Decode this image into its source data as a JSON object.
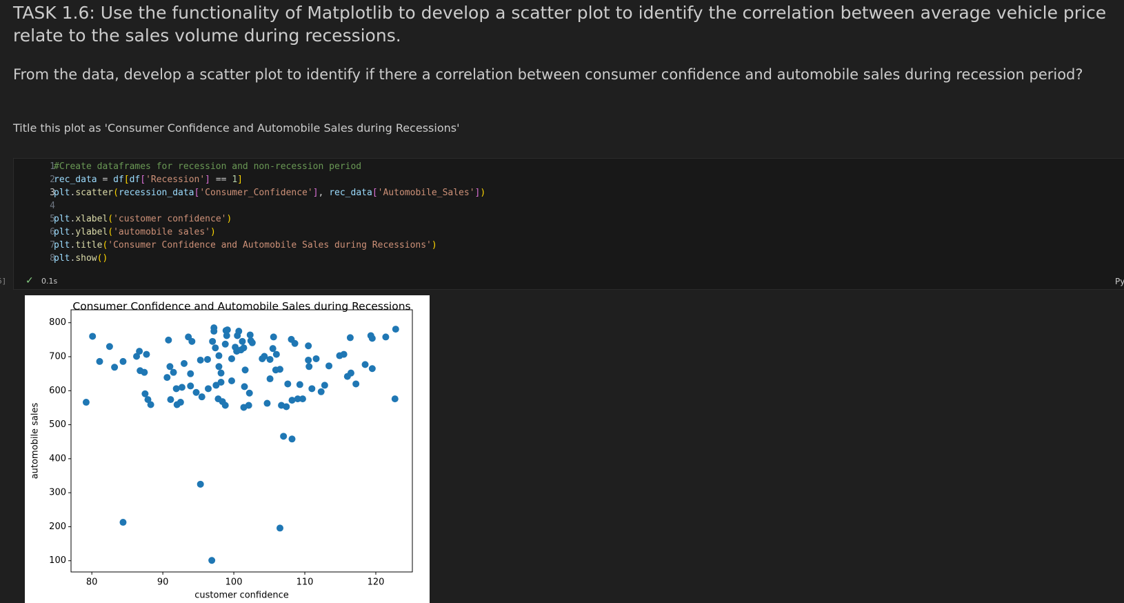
{
  "markdown": {
    "heading": "TASK 1.6: Use the functionality of Matplotlib to develop a scatter plot to identify the correlation between average vehicle price relate to the sales volume during recessions.",
    "question": "From the data, develop a scatter plot to identify if there a correlation between consumer confidence and automobile sales during recession period?",
    "instruction": "Title this plot as 'Consumer Confidence and Automobile Sales during Recessions'"
  },
  "cell": {
    "execution_count": "6]",
    "kernel": "Py",
    "status": "0.1s",
    "lines": [
      {
        "number": "1",
        "text": "#Create dataframes for recession and non-recession period"
      },
      {
        "number": "2",
        "text": "rec_data = df[df['Recession'] == 1]"
      },
      {
        "number": "3",
        "text": "plt.scatter(recession_data['Consumer_Confidence'], rec_data['Automobile_Sales'])"
      },
      {
        "number": "4",
        "text": ""
      },
      {
        "number": "5",
        "text": "plt.xlabel('customer confidence')"
      },
      {
        "number": "6",
        "text": "plt.ylabel('automobile sales')"
      },
      {
        "number": "7",
        "text": "plt.title('Consumer Confidence and Automobile Sales during Recessions')"
      },
      {
        "number": "8",
        "text": "plt.show()"
      }
    ]
  },
  "chart_data": {
    "type": "scatter",
    "title": "Consumer Confidence and Automobile Sales during Recessions",
    "x_label": "customer confidence",
    "y_label": "automobile sales",
    "color": "#1f77b4",
    "xlim": [
      77.07,
      125.15
    ],
    "ylim": [
      67,
      838
    ],
    "xticks": [
      80,
      90,
      100,
      110,
      120
    ],
    "yticks": [
      100,
      200,
      300,
      400,
      500,
      600,
      700,
      800
    ],
    "x": [
      79.2,
      80.1,
      81.1,
      82.5,
      83.2,
      84.4,
      84.4,
      86.3,
      86.7,
      86.8,
      87.4,
      87.7,
      87.5,
      87.9,
      88.3,
      90.6,
      90.8,
      91.0,
      91.1,
      91.5,
      91.9,
      92.0,
      92.5,
      92.7,
      93.0,
      93.6,
      94.1,
      93.9,
      93.9,
      94.7,
      95.3,
      95.5,
      95.3,
      96.3,
      96.4,
      96.9,
      97.0,
      97.2,
      97.2,
      97.4,
      97.5,
      97.9,
      97.8,
      97.9,
      98.2,
      98.2,
      98.4,
      98.8,
      98.8,
      98.9,
      99.0,
      99.1,
      99.7,
      99.7,
      100.2,
      100.4,
      100.5,
      100.7,
      101.0,
      101.2,
      101.4,
      101.5,
      101.6,
      101.4,
      102.1,
      102.2,
      102.3,
      102.4,
      102.6,
      104.0,
      104.3,
      104.7,
      105.1,
      105.1,
      105.5,
      105.6,
      105.9,
      106.0,
      106.5,
      106.7,
      106.5,
      107.0,
      107.4,
      107.6,
      108.1,
      108.2,
      108.2,
      108.6,
      109.0,
      109.3,
      109.7,
      110.5,
      110.5,
      110.6,
      111.0,
      111.6,
      112.3,
      112.8,
      113.4,
      114.9,
      115.5,
      116.0,
      116.4,
      116.5,
      117.2,
      118.5,
      119.3,
      119.5,
      119.5,
      121.4,
      122.8,
      122.7
    ],
    "values": [
      566,
      760,
      686,
      730,
      669,
      686,
      213,
      701,
      716,
      659,
      654,
      707,
      591,
      574,
      559,
      639,
      749,
      671,
      574,
      654,
      606,
      559,
      566,
      610,
      680,
      758,
      745,
      650,
      614,
      595,
      690,
      582,
      325,
      692,
      606,
      101,
      745,
      785,
      775,
      726,
      616,
      703,
      576,
      671,
      652,
      625,
      568,
      557,
      737,
      777,
      762,
      779,
      694,
      629,
      728,
      716,
      762,
      775,
      720,
      745,
      726,
      612,
      661,
      551,
      557,
      593,
      764,
      747,
      741,
      694,
      701,
      563,
      692,
      635,
      724,
      758,
      661,
      707,
      663,
      557,
      196,
      466,
      553,
      620,
      751,
      458,
      572,
      739,
      576,
      618,
      576,
      732,
      690,
      671,
      606,
      694,
      597,
      616,
      673,
      703,
      707,
      642,
      756,
      652,
      620,
      677,
      762,
      754,
      665,
      758,
      781,
      576
    ]
  }
}
